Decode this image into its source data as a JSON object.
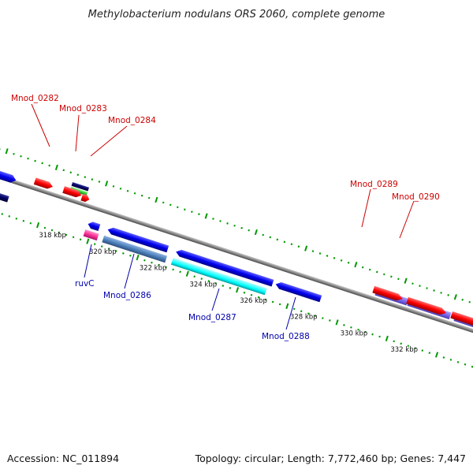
{
  "title": "Methylobacterium nodulans ORS 2060, complete genome",
  "footer": {
    "accession": "Accession: NC_011894",
    "topology": "Topology: circular; Length: 7,772,460 bp; Genes: 7,447"
  },
  "kbp_labels": [
    "318 kbp",
    "320 kbp",
    "322 kbp",
    "324 kbp",
    "326 kbp",
    "328 kbp",
    "330 kbp",
    "332 kbp"
  ],
  "gene_labels_top": [
    "Mnod_0282",
    "Mnod_0283",
    "Mnod_0284",
    "Mnod_0289",
    "Mnod_0290"
  ],
  "gene_labels_bottom": [
    "ruvC",
    "Mnod_0286",
    "Mnod_0287",
    "Mnod_0288"
  ],
  "colors": {
    "red": "#ff0000",
    "blue": "#0000ee",
    "navy": "#000066",
    "green": "#33cc33",
    "pink": "#ff3399",
    "steel": "#4f81bd",
    "cyan": "#00ffff",
    "lavender": "#7b68ee",
    "axis": "#888888",
    "ticks": "#009900",
    "label_red": "#cc0000",
    "label_blue": "#0000aa"
  }
}
